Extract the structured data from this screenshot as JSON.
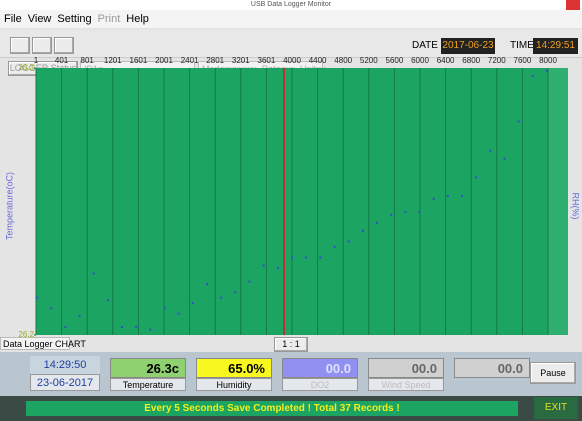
{
  "window": {
    "title": "USB Data Logger Monitor"
  },
  "menu": [
    "File",
    "View",
    "Setting",
    "Print",
    "Help"
  ],
  "toolbar": {
    "date_label": "DATE",
    "date": "2017-06-23",
    "time_label": "TIME",
    "time": "14:29:51"
  },
  "status": {
    "button": "LOGGER Status",
    "id": "ID1=",
    "mode": "Mode=xxxxxx, Rate=xx, Unit=x"
  },
  "chart_data": {
    "type": "scatter",
    "y_label": "Temperature(oC)",
    "y2_label": "RH(%)",
    "xticks": [
      1,
      401,
      801,
      1201,
      1601,
      2001,
      2401,
      2801,
      3201,
      3601,
      4000,
      4400,
      4800,
      5200,
      5600,
      6000,
      6400,
      6800,
      7200,
      7600,
      8000
    ],
    "ylim": [
      26.2,
      26.3
    ],
    "yticks": [
      26.2,
      26.3
    ],
    "color": "#3050c8",
    "values": [
      26.214,
      26.21,
      26.203,
      26.207,
      26.223,
      26.213,
      26.203,
      26.203,
      26.202,
      26.21,
      26.208,
      26.212,
      26.219,
      26.214,
      26.216,
      26.22,
      26.226,
      26.225,
      26.229,
      26.229,
      26.229,
      26.233,
      26.235,
      26.239,
      26.242,
      26.245,
      26.246,
      26.246,
      26.251,
      26.252,
      26.252,
      26.259,
      26.269,
      26.266,
      26.28,
      26.297,
      26.299
    ],
    "caption": "Data Logger CHART",
    "zoom": "1 : 1"
  },
  "clock": {
    "time": "14:29:50",
    "date": "23-06-2017"
  },
  "readings": [
    {
      "value": "26.3c",
      "label": "Temperature"
    },
    {
      "value": "65.0%",
      "label": "Humidity"
    },
    {
      "value": "00.0",
      "label": "DO2"
    },
    {
      "value": "00.0",
      "label": "Wind Speed"
    },
    {
      "value": "00.0"
    }
  ],
  "pause": "Pause",
  "message": "Every 5 Seconds Save Completed ! Total 37 Records !",
  "exit": "EXIT"
}
